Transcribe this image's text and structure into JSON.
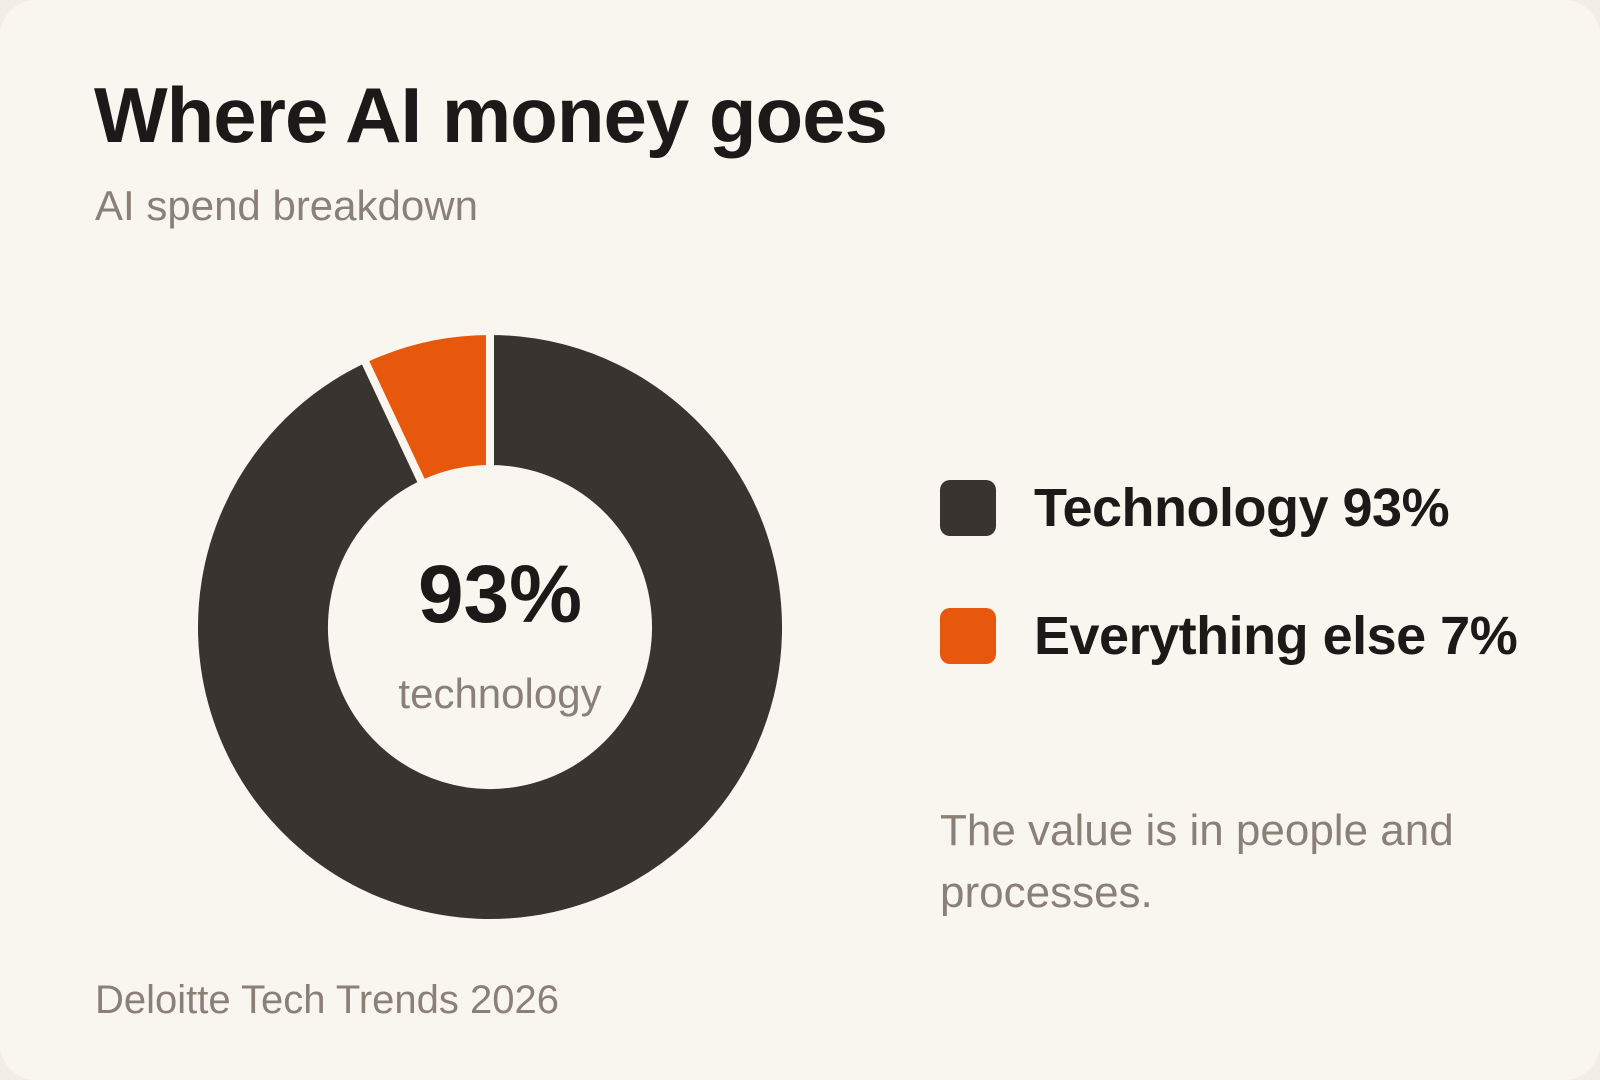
{
  "colors": {
    "technology": "#3a3431",
    "everything_else": "#e8580c",
    "background": "#f9f6f0"
  },
  "chart_data": {
    "type": "pie",
    "title": "Where AI money goes",
    "subtitle": "AI spend breakdown",
    "categories": [
      "Technology",
      "Everything else"
    ],
    "values": [
      93,
      7
    ],
    "unit": "%",
    "legend": {
      "placement": "right",
      "entries": [
        "Technology 93%",
        "Everything else 7%"
      ]
    },
    "center": {
      "value": "93%",
      "label": "technology"
    },
    "annotation": "The value is in people and processes.",
    "source": "Deloitte Tech Trends 2026"
  }
}
